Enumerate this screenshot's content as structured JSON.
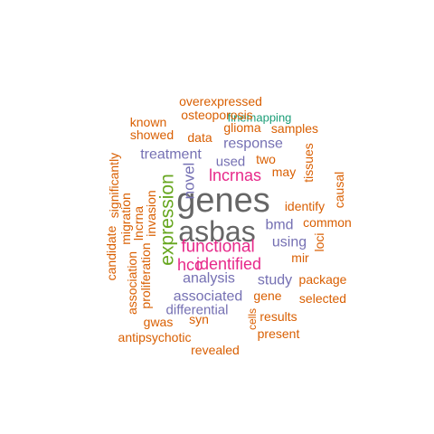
{
  "colors": {
    "orange": "#d95f02",
    "green": "#1b9e77",
    "purple": "#7570b3",
    "magenta": "#e7298a",
    "olive": "#66a61e",
    "gray": "#666666"
  },
  "words": [
    {
      "text": "genes",
      "color": "gray"
    },
    {
      "text": "asbas",
      "color": "gray"
    },
    {
      "text": "expression",
      "color": "olive"
    },
    {
      "text": "functional",
      "color": "magenta"
    },
    {
      "text": "identified",
      "color": "magenta"
    },
    {
      "text": "hcc",
      "color": "magenta"
    },
    {
      "text": "lncrnas",
      "color": "magenta"
    },
    {
      "text": "novel",
      "color": "purple"
    },
    {
      "text": "analysis",
      "color": "purple"
    },
    {
      "text": "associated",
      "color": "purple"
    },
    {
      "text": "study",
      "color": "purple"
    },
    {
      "text": "treatment",
      "color": "purple"
    },
    {
      "text": "response",
      "color": "purple"
    },
    {
      "text": "bmd",
      "color": "purple"
    },
    {
      "text": "using",
      "color": "purple"
    },
    {
      "text": "used",
      "color": "purple"
    },
    {
      "text": "differential",
      "color": "purple"
    },
    {
      "text": "finemapping",
      "color": "green"
    },
    {
      "text": "overexpressed",
      "color": "orange"
    },
    {
      "text": "osteoporosis",
      "color": "orange"
    },
    {
      "text": "known",
      "color": "orange"
    },
    {
      "text": "showed",
      "color": "orange"
    },
    {
      "text": "glioma",
      "color": "orange"
    },
    {
      "text": "samples",
      "color": "orange"
    },
    {
      "text": "data",
      "color": "orange"
    },
    {
      "text": "two",
      "color": "orange"
    },
    {
      "text": "may",
      "color": "orange"
    },
    {
      "text": "tissues",
      "color": "orange"
    },
    {
      "text": "causal",
      "color": "orange"
    },
    {
      "text": "identify",
      "color": "orange"
    },
    {
      "text": "common",
      "color": "orange"
    },
    {
      "text": "mir",
      "color": "orange"
    },
    {
      "text": "loci",
      "color": "orange"
    },
    {
      "text": "significantly",
      "color": "orange"
    },
    {
      "text": "candidate",
      "color": "orange"
    },
    {
      "text": "migration",
      "color": "orange"
    },
    {
      "text": "lncrna",
      "color": "orange"
    },
    {
      "text": "invasion",
      "color": "orange"
    },
    {
      "text": "association",
      "color": "orange"
    },
    {
      "text": "proliferation",
      "color": "orange"
    },
    {
      "text": "package",
      "color": "orange"
    },
    {
      "text": "gene",
      "color": "orange"
    },
    {
      "text": "selected",
      "color": "orange"
    },
    {
      "text": "gwas",
      "color": "orange"
    },
    {
      "text": "syn",
      "color": "orange"
    },
    {
      "text": "cells",
      "color": "orange"
    },
    {
      "text": "results",
      "color": "orange"
    },
    {
      "text": "present",
      "color": "orange"
    },
    {
      "text": "antipsychotic",
      "color": "orange"
    },
    {
      "text": "revealed",
      "color": "orange"
    }
  ]
}
